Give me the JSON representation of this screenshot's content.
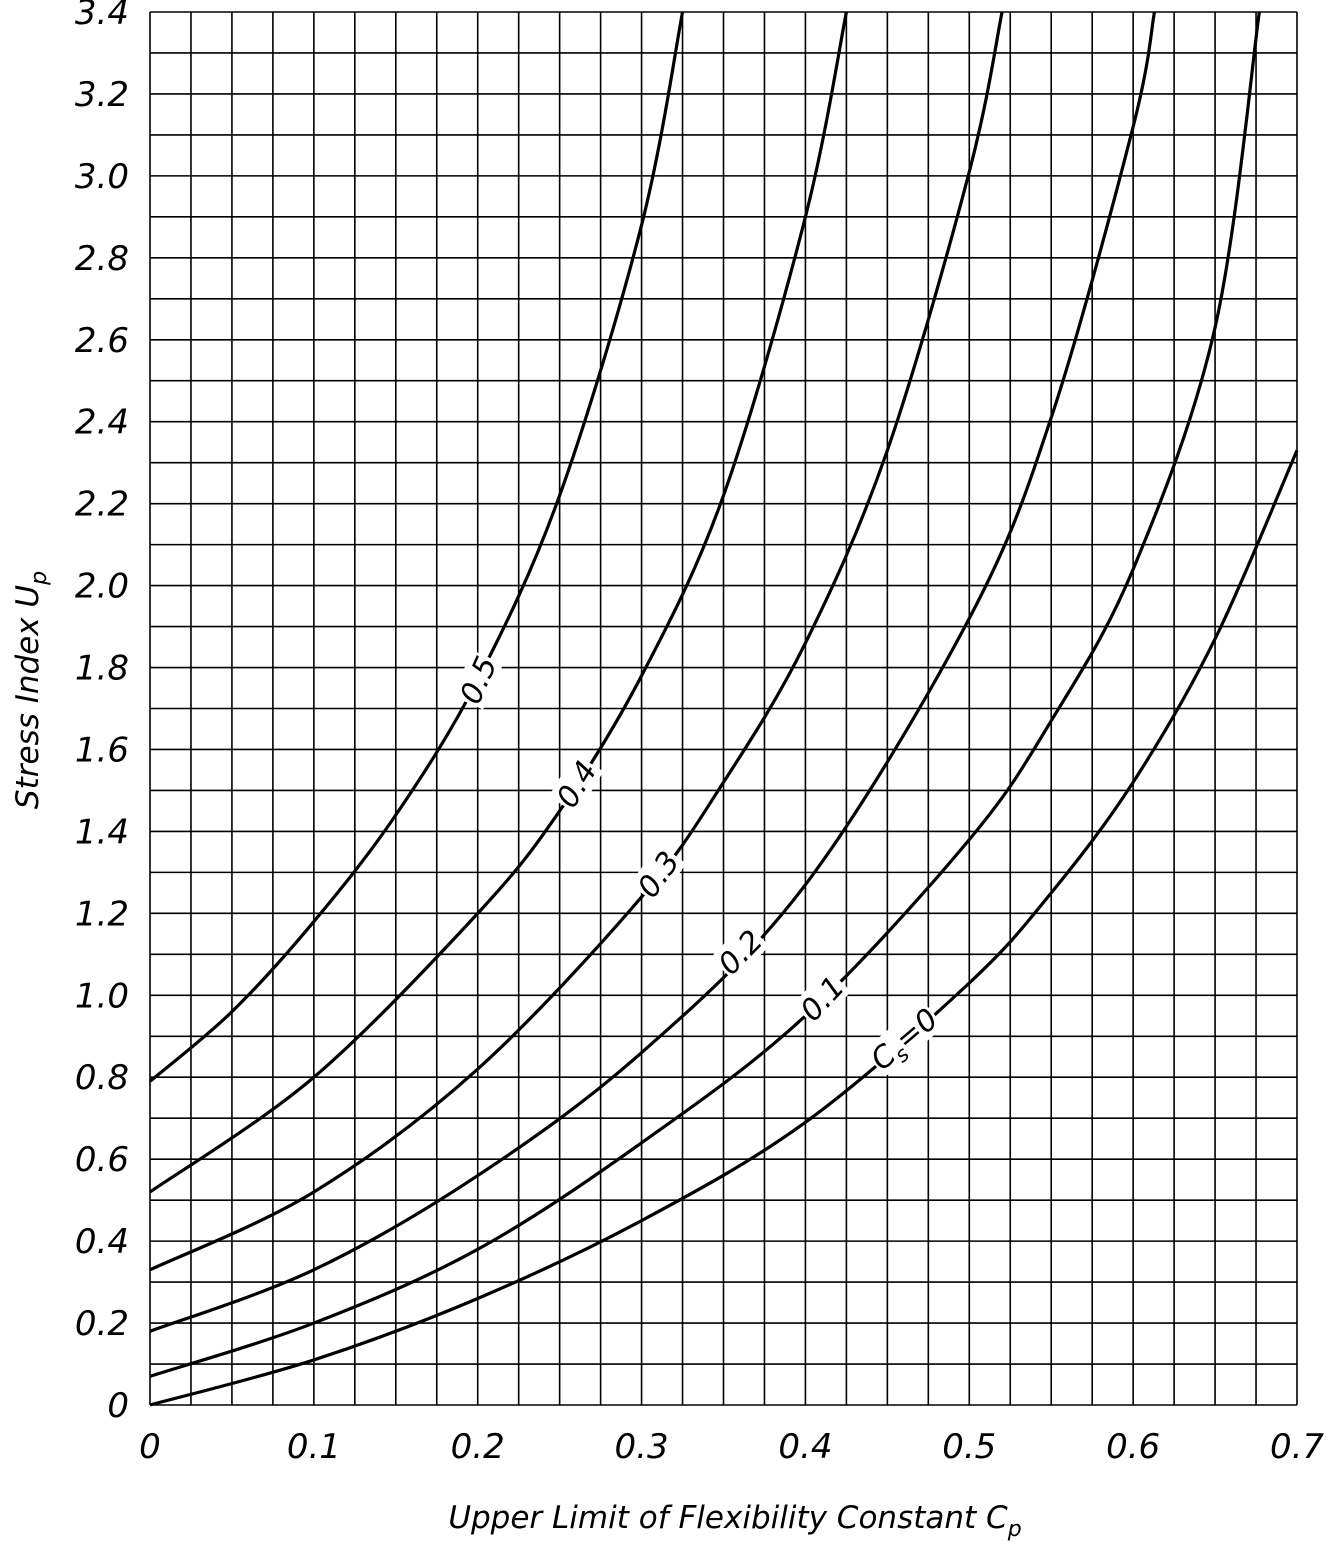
{
  "chart_data": {
    "type": "line",
    "xlabel": "Upper Limit of Flexibility Constant",
    "xlabel_symbol": "C",
    "xlabel_subscript": "p",
    "ylabel": "Stress Index",
    "ylabel_symbol": "U",
    "ylabel_subscript": "p",
    "xlim": [
      0,
      0.7
    ],
    "ylim": [
      0,
      3.4
    ],
    "x_ticks": [
      "0",
      "0.1",
      "0.2",
      "0.3",
      "0.4",
      "0.5",
      "0.6",
      "0.7"
    ],
    "y_ticks": [
      "0",
      "0.2",
      "0.4",
      "0.6",
      "0.8",
      "1.0",
      "1.2",
      "1.4",
      "1.6",
      "1.8",
      "2.0",
      "2.2",
      "2.4",
      "2.6",
      "2.8",
      "3.0",
      "3.2",
      "3.4"
    ],
    "grid": true,
    "series": [
      {
        "label": "C",
        "label_subscript": "s",
        "label_suffix": "=0",
        "x": [
          0,
          0.1,
          0.2,
          0.3,
          0.4,
          0.5,
          0.55,
          0.6,
          0.65,
          0.7
        ],
        "y": [
          0,
          0.11,
          0.26,
          0.45,
          0.69,
          1.03,
          1.25,
          1.52,
          1.87,
          2.33
        ]
      },
      {
        "label": "0.1",
        "x": [
          0,
          0.1,
          0.2,
          0.3,
          0.4,
          0.5,
          0.55,
          0.6,
          0.65,
          0.677
        ],
        "y": [
          0.07,
          0.2,
          0.38,
          0.64,
          0.95,
          1.38,
          1.67,
          2.04,
          2.63,
          3.4
        ]
      },
      {
        "label": "0.2",
        "x": [
          0,
          0.1,
          0.2,
          0.3,
          0.4,
          0.5,
          0.55,
          0.6,
          0.613
        ],
        "y": [
          0.18,
          0.33,
          0.56,
          0.86,
          1.27,
          1.92,
          2.41,
          3.12,
          3.4
        ]
      },
      {
        "label": "0.3",
        "x": [
          0,
          0.1,
          0.2,
          0.3,
          0.35,
          0.4,
          0.45,
          0.5,
          0.52
        ],
        "y": [
          0.33,
          0.52,
          0.82,
          1.24,
          1.52,
          1.86,
          2.33,
          3.01,
          3.4
        ]
      },
      {
        "label": "0.4",
        "x": [
          0,
          0.1,
          0.2,
          0.25,
          0.3,
          0.35,
          0.4,
          0.425
        ],
        "y": [
          0.52,
          0.8,
          1.2,
          1.45,
          1.78,
          2.22,
          2.9,
          3.4
        ]
      },
      {
        "label": "0.5",
        "x": [
          0,
          0.05,
          0.1,
          0.15,
          0.2,
          0.25,
          0.3,
          0.325
        ],
        "y": [
          0.79,
          0.96,
          1.18,
          1.44,
          1.77,
          2.22,
          2.88,
          3.4
        ]
      }
    ]
  }
}
